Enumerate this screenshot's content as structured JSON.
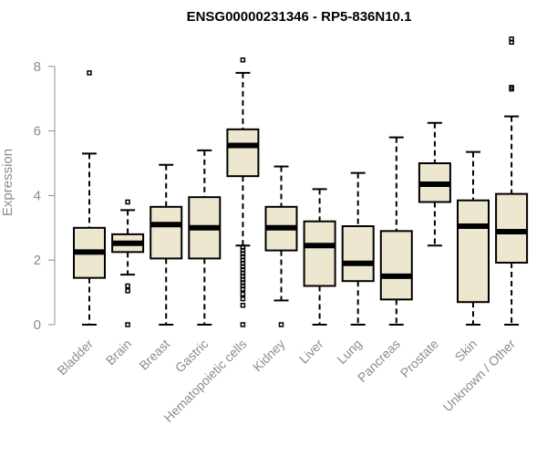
{
  "chart_data": {
    "type": "boxplot",
    "title": "ENSG00000231346 - RP5-836N10.1",
    "ylabel": "Expression",
    "xlabel": "",
    "ylim": [
      0,
      9
    ],
    "yticks": [
      0,
      2,
      4,
      6,
      8
    ],
    "grid": false,
    "fill_color": "#ede7cf",
    "categories": [
      "Bladder",
      "Brain",
      "Breast",
      "Gastric",
      "Hematopoietic cells",
      "Kidney",
      "Liver",
      "Lung",
      "Pancreas",
      "Prostate",
      "Skin",
      "Unknown / Other"
    ],
    "boxes": [
      {
        "min": 0.0,
        "q1": 1.45,
        "median": 2.25,
        "q3": 3.0,
        "max": 5.3,
        "outliers": [
          7.8
        ]
      },
      {
        "min": 1.55,
        "q1": 2.25,
        "median": 2.52,
        "q3": 2.8,
        "max": 3.55,
        "outliers": [
          3.8,
          1.2,
          1.05,
          0.0
        ]
      },
      {
        "min": 0.0,
        "q1": 2.05,
        "median": 3.1,
        "q3": 3.65,
        "max": 4.95,
        "outliers": []
      },
      {
        "min": 0.0,
        "q1": 2.05,
        "median": 3.0,
        "q3": 3.95,
        "max": 5.4,
        "outliers": []
      },
      {
        "min": 2.45,
        "q1": 4.6,
        "median": 5.55,
        "q3": 6.05,
        "max": 7.8,
        "outliers": [
          8.2,
          2.4,
          2.3,
          2.2,
          2.1,
          2.0,
          1.9,
          1.8,
          1.7,
          1.6,
          1.5,
          1.4,
          1.3,
          1.2,
          1.1,
          0.95,
          0.8,
          0.6,
          0.0
        ]
      },
      {
        "min": 0.75,
        "q1": 2.3,
        "median": 3.0,
        "q3": 3.65,
        "max": 4.9,
        "outliers": [
          0.0
        ]
      },
      {
        "min": 0.0,
        "q1": 1.2,
        "median": 2.45,
        "q3": 3.2,
        "max": 4.2,
        "outliers": []
      },
      {
        "min": 0.0,
        "q1": 1.35,
        "median": 1.9,
        "q3": 3.05,
        "max": 4.7,
        "outliers": []
      },
      {
        "min": 0.0,
        "q1": 0.78,
        "median": 1.5,
        "q3": 2.9,
        "max": 5.8,
        "outliers": []
      },
      {
        "min": 2.45,
        "q1": 3.8,
        "median": 4.35,
        "q3": 5.0,
        "max": 6.25,
        "outliers": []
      },
      {
        "min": 0.0,
        "q1": 0.7,
        "median": 3.05,
        "q3": 3.85,
        "max": 5.35,
        "outliers": []
      },
      {
        "min": 0.0,
        "q1": 1.92,
        "median": 2.88,
        "q3": 4.05,
        "max": 6.45,
        "outliers": [
          8.85,
          8.75,
          7.35,
          7.3
        ]
      }
    ]
  }
}
